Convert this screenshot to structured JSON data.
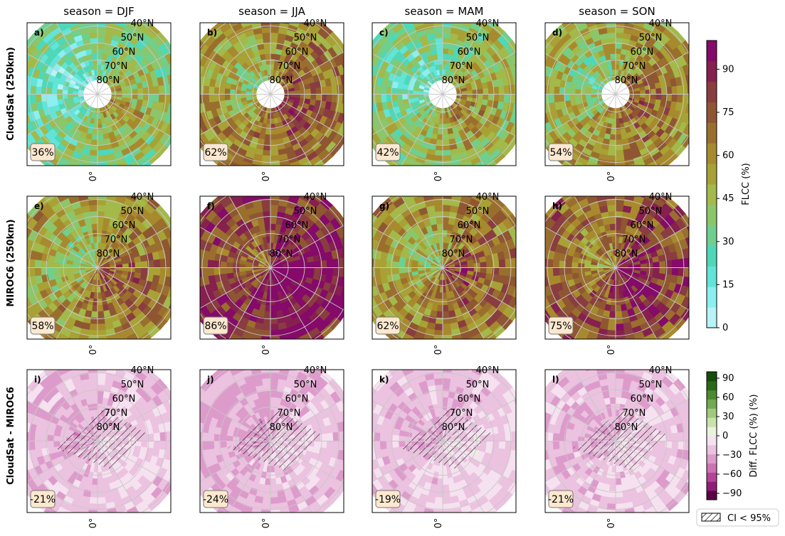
{
  "row_labels": [
    "CloudSat (250km)",
    "MIROC6 (250km)",
    "CloudSat - MIROC6"
  ],
  "column_titles": [
    "season = DJF",
    "season = JJA",
    "season = MAM",
    "season = SON"
  ],
  "lat_labels": [
    "40°N",
    "50°N",
    "60°N",
    "70°N",
    "80°N"
  ],
  "lon_label": "0°",
  "colorbar_top": {
    "label": "FLCC (%)",
    "ticks": [
      0,
      15,
      30,
      45,
      60,
      75,
      90
    ],
    "range": [
      0,
      100
    ],
    "colors": [
      "#b8f3f8",
      "#8ceff0",
      "#62e4d8",
      "#4fd8b8",
      "#6fcf8f",
      "#8cc66a",
      "#a3b94a",
      "#a8a236",
      "#a88a2e",
      "#9a6f2e",
      "#8f5632",
      "#8a3d40",
      "#86204f",
      "#850a69"
    ]
  },
  "colorbar_bottom": {
    "label": "Diff. FLCC (%)  (%)",
    "ticks": [
      -90,
      -60,
      -30,
      0,
      30,
      60,
      90
    ],
    "range": [
      -100,
      100
    ],
    "colors": [
      "#5a0045",
      "#8e1d78",
      "#b44596",
      "#cd72b4",
      "#dd9bcb",
      "#ebc2df",
      "#f5e1ef",
      "#e8f2dc",
      "#c8e2ad",
      "#a0c97e",
      "#72aa51",
      "#4b8a30",
      "#2a6918",
      "#164d0b"
    ]
  },
  "hatch_legend": "CI < 95%",
  "chart_data": [
    {
      "type": "heatmap",
      "panel": "a)",
      "row": "CloudSat (250km)",
      "season": "DJF",
      "mean_label": "36%",
      "mean_value": 36
    },
    {
      "type": "heatmap",
      "panel": "b)",
      "row": "CloudSat (250km)",
      "season": "JJA",
      "mean_label": "62%",
      "mean_value": 62
    },
    {
      "type": "heatmap",
      "panel": "c)",
      "row": "CloudSat (250km)",
      "season": "MAM",
      "mean_label": "42%",
      "mean_value": 42
    },
    {
      "type": "heatmap",
      "panel": "d)",
      "row": "CloudSat (250km)",
      "season": "SON",
      "mean_label": "54%",
      "mean_value": 54
    },
    {
      "type": "heatmap",
      "panel": "e)",
      "row": "MIROC6 (250km)",
      "season": "DJF",
      "mean_label": "58%",
      "mean_value": 58
    },
    {
      "type": "heatmap",
      "panel": "f)",
      "row": "MIROC6 (250km)",
      "season": "JJA",
      "mean_label": "86%",
      "mean_value": 86
    },
    {
      "type": "heatmap",
      "panel": "g)",
      "row": "MIROC6 (250km)",
      "season": "MAM",
      "mean_label": "62%",
      "mean_value": 62
    },
    {
      "type": "heatmap",
      "panel": "h)",
      "row": "MIROC6 (250km)",
      "season": "SON",
      "mean_label": "75%",
      "mean_value": 75
    },
    {
      "type": "heatmap",
      "panel": "i)",
      "row": "CloudSat - MIROC6",
      "season": "DJF",
      "mean_label": "-21%",
      "mean_value": -21
    },
    {
      "type": "heatmap",
      "panel": "j)",
      "row": "CloudSat - MIROC6",
      "season": "JJA",
      "mean_label": "-24%",
      "mean_value": -24
    },
    {
      "type": "heatmap",
      "panel": "k)",
      "row": "CloudSat - MIROC6",
      "season": "MAM",
      "mean_label": "-19%",
      "mean_value": -19
    },
    {
      "type": "heatmap",
      "panel": "l)",
      "row": "CloudSat - MIROC6",
      "season": "SON",
      "mean_label": "-21%",
      "mean_value": -21
    }
  ]
}
